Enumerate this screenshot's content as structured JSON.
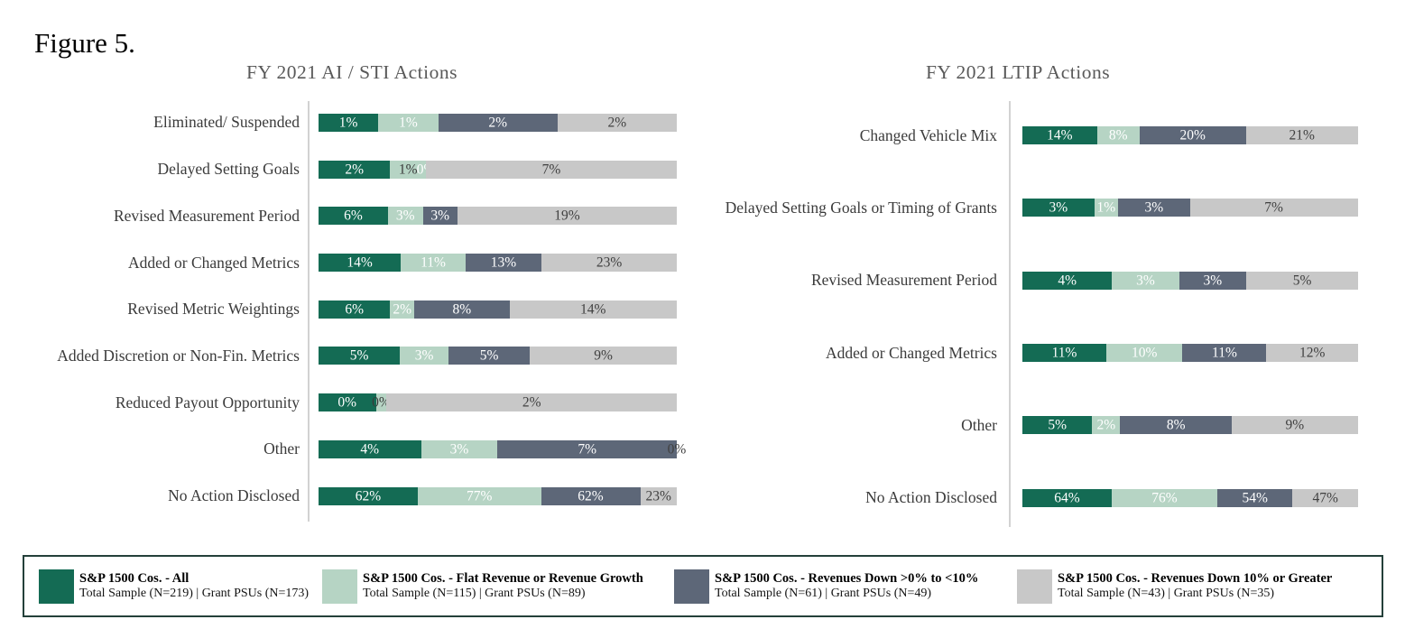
{
  "figure_label": "Figure 5.",
  "colors": {
    "series": [
      "#146b54",
      "#b6d4c4",
      "#5d6778",
      "#c8c8c8"
    ],
    "series_label_colors": [
      "#ffffff",
      "#ffffff",
      "#ffffff",
      "#404040"
    ],
    "axis_line": "#d2d2d2",
    "chart_title": "#595959",
    "category_label": "#3b3b3b",
    "legend_border": "#24403a"
  },
  "legend": {
    "position": "bottom",
    "items": [
      {
        "title": "S&P 1500 Cos. - All",
        "sample": "Total Sample (N=219) | Grant PSUs (N=173)",
        "color": "#146b54"
      },
      {
        "title": "S&P 1500 Cos. - Flat Revenue or Revenue Growth",
        "sample": "Total Sample (N=115) | Grant PSUs (N=89)",
        "color": "#b6d4c4"
      },
      {
        "title": "S&P 1500 Cos. - Revenues Down >0% to <10%",
        "sample": "Total Sample (N=61) | Grant PSUs (N=49)",
        "color": "#5d6778"
      },
      {
        "title": "S&P 1500 Cos. - Revenues Down 10% or Greater",
        "sample": "Total Sample (N=43) | Grant PSUs (N=35)",
        "color": "#c8c8c8"
      }
    ]
  },
  "chart_data": [
    {
      "type": "bar",
      "orientation": "horizontal",
      "stacked": true,
      "normalized_to_full_width": true,
      "title": "FY 2021 AI / STI Actions",
      "categories": [
        "Eliminated/ Suspended",
        "Delayed Setting Goals",
        "Revised Measurement Period",
        "Added or Changed Metrics",
        "Revised Metric Weightings",
        "Added Discretion or Non-Fin. Metrics",
        "Reduced Payout Opportunity",
        "Other",
        "No Action Disclosed"
      ],
      "series": [
        {
          "name": "S&P 1500 Cos. - All",
          "values": [
            1,
            2,
            6,
            14,
            6,
            5,
            0,
            4,
            62
          ]
        },
        {
          "name": "S&P 1500 Cos. - Flat Revenue or Revenue Growth",
          "values": [
            1,
            1,
            3,
            11,
            2,
            3,
            0,
            3,
            77
          ]
        },
        {
          "name": "S&P 1500 Cos. - Revenues Down >0% to <10%",
          "values": [
            2,
            0,
            3,
            13,
            8,
            5,
            null,
            7,
            62
          ]
        },
        {
          "name": "S&P 1500 Cos. - Revenues Down 10% or Greater",
          "values": [
            2,
            7,
            19,
            23,
            14,
            9,
            2,
            0,
            23
          ]
        }
      ],
      "rows": [
        {
          "labels": [
            "1%",
            "1%",
            "2%",
            "2%"
          ],
          "widths": [
            16.7,
            16.7,
            33.3,
            33.3
          ]
        },
        {
          "labels": [
            "2%",
            "1%",
            "0%",
            "7%"
          ],
          "widths": [
            20.0,
            10.0,
            0.0,
            70.0
          ],
          "label_colors": [
            "#ffffff",
            "#3a3a3a",
            "#ffffff",
            "#404040"
          ]
        },
        {
          "labels": [
            "6%",
            "3%",
            "3%",
            "19%"
          ],
          "widths": [
            19.4,
            9.7,
            9.7,
            61.2
          ]
        },
        {
          "labels": [
            "14%",
            "11%",
            "13%",
            "23%"
          ],
          "widths": [
            23.0,
            18.0,
            21.3,
            37.7
          ]
        },
        {
          "labels": [
            "6%",
            "2%",
            "8%",
            "14%"
          ],
          "widths": [
            20.0,
            6.7,
            26.6,
            46.7
          ]
        },
        {
          "labels": [
            "5%",
            "3%",
            "5%",
            "9%"
          ],
          "widths": [
            22.7,
            13.6,
            22.7,
            41.0
          ]
        },
        {
          "labels": [
            "0%",
            "0%",
            "",
            "2%"
          ],
          "widths": [
            16.0,
            3.0,
            0.0,
            81.0
          ],
          "label_colors": [
            "#ffffff",
            "#3a3a3a",
            "#ffffff",
            "#404040"
          ]
        },
        {
          "labels": [
            "4%",
            "3%",
            "7%",
            "0%"
          ],
          "widths": [
            28.6,
            21.4,
            50.0,
            0.0
          ]
        },
        {
          "labels": [
            "62%",
            "77%",
            "62%",
            "23%"
          ],
          "widths": [
            27.7,
            34.4,
            27.7,
            10.2
          ]
        }
      ]
    },
    {
      "type": "bar",
      "orientation": "horizontal",
      "stacked": true,
      "normalized_to_full_width": true,
      "title": "FY 2021 LTIP Actions",
      "categories": [
        "Changed Vehicle Mix",
        "Delayed Setting Goals or Timing of Grants",
        "Revised Measurement Period",
        "Added or Changed Metrics",
        "Other",
        "No Action Disclosed"
      ],
      "series": [
        {
          "name": "S&P 1500 Cos. - All",
          "values": [
            14,
            3,
            4,
            11,
            5,
            64
          ]
        },
        {
          "name": "S&P 1500 Cos. - Flat Revenue or Revenue Growth",
          "values": [
            8,
            1,
            3,
            10,
            2,
            76
          ]
        },
        {
          "name": "S&P 1500 Cos. - Revenues Down >0% to <10%",
          "values": [
            20,
            3,
            3,
            11,
            8,
            54
          ]
        },
        {
          "name": "S&P 1500 Cos. - Revenues Down 10% or Greater",
          "values": [
            21,
            7,
            5,
            12,
            9,
            47
          ]
        }
      ],
      "rows": [
        {
          "labels": [
            "14%",
            "8%",
            "20%",
            "21%"
          ],
          "widths": [
            22.2,
            12.7,
            31.7,
            33.3
          ]
        },
        {
          "labels": [
            "3%",
            "1%",
            "3%",
            "7%"
          ],
          "widths": [
            21.4,
            7.1,
            21.4,
            50.0
          ]
        },
        {
          "labels": [
            "4%",
            "3%",
            "3%",
            "5%"
          ],
          "widths": [
            26.7,
            20.0,
            20.0,
            33.3
          ]
        },
        {
          "labels": [
            "11%",
            "10%",
            "11%",
            "12%"
          ],
          "widths": [
            25.0,
            22.7,
            25.0,
            27.3
          ]
        },
        {
          "labels": [
            "5%",
            "2%",
            "8%",
            "9%"
          ],
          "widths": [
            20.8,
            8.3,
            33.3,
            37.5
          ]
        },
        {
          "labels": [
            "64%",
            "76%",
            "54%",
            "47%"
          ],
          "widths": [
            26.6,
            31.5,
            22.4,
            19.5
          ]
        }
      ]
    }
  ]
}
